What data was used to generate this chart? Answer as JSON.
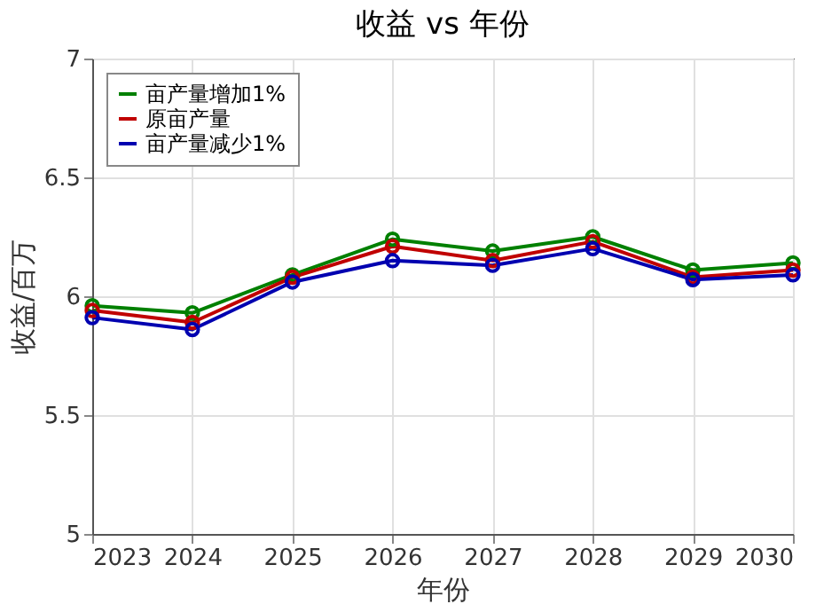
{
  "chart_data": {
    "type": "line",
    "title": "收益 vs 年份",
    "xlabel": "年份",
    "ylabel": "收益/百万",
    "x": [
      2023,
      2024,
      2025,
      2026,
      2027,
      2028,
      2029,
      2030
    ],
    "series": [
      {
        "name": "亩产量增加1%",
        "color": "#008000",
        "values": [
          5.96,
          5.93,
          6.09,
          6.24,
          6.19,
          6.25,
          6.11,
          6.14
        ]
      },
      {
        "name": "原亩产量",
        "color": "#c00000",
        "values": [
          5.94,
          5.89,
          6.08,
          6.21,
          6.15,
          6.23,
          6.08,
          6.11
        ]
      },
      {
        "name": "亩产量减少1%",
        "color": "#0000b0",
        "values": [
          5.91,
          5.86,
          6.06,
          6.15,
          6.13,
          6.2,
          6.07,
          6.09
        ]
      }
    ],
    "xlim": [
      2023,
      2030
    ],
    "xticks": [
      2023,
      2024,
      2025,
      2026,
      2027,
      2028,
      2029,
      2030
    ],
    "ylim": [
      5,
      7
    ],
    "yticks": [
      5,
      5.5,
      6,
      6.5,
      7
    ],
    "grid": true,
    "legend": "top left",
    "marker": "circle",
    "line_style": "solid"
  }
}
